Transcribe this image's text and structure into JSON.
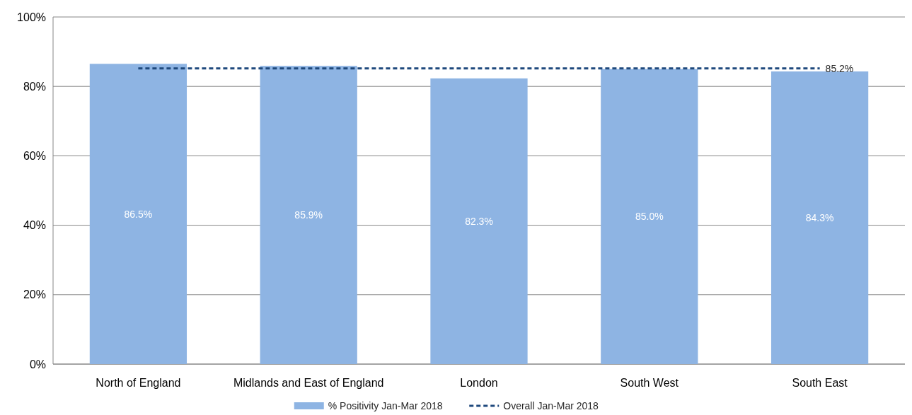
{
  "chart_data": {
    "type": "bar",
    "categories": [
      "North of England",
      "Midlands and East of England",
      "London",
      "South West",
      "South East"
    ],
    "series": [
      {
        "name": "% Positivity Jan-Mar 2018",
        "color": "#8eb4e3",
        "values": [
          86.5,
          85.9,
          82.3,
          85.0,
          84.3
        ],
        "value_labels": [
          "86.5%",
          "85.9%",
          "82.3%",
          "85.0%",
          "84.3%"
        ]
      },
      {
        "name": "Overall Jan-Mar 2018",
        "type": "line",
        "color": "#1f497d",
        "line_style": "dashed",
        "marker": "none",
        "values": [
          85.2,
          85.2,
          85.2,
          85.2,
          85.2
        ],
        "value_labels": [
          null,
          null,
          null,
          null,
          "85.2%"
        ]
      }
    ],
    "ylim": [
      0,
      100
    ],
    "yticks": [
      {
        "value": 0,
        "label": "0%"
      },
      {
        "value": 20,
        "label": "20%"
      },
      {
        "value": 40,
        "label": "40%"
      },
      {
        "value": 60,
        "label": "60%"
      },
      {
        "value": 80,
        "label": "80%"
      },
      {
        "value": 100,
        "label": "100%"
      }
    ],
    "grid": "y",
    "legend": "bottom"
  }
}
